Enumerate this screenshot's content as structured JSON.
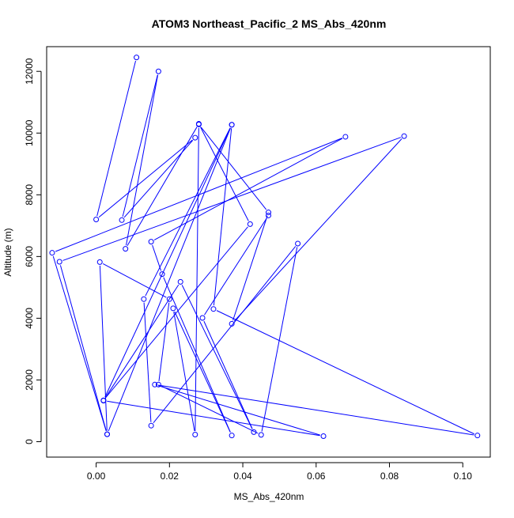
{
  "chart_data": {
    "type": "line",
    "title": "ATOM3 Northeast_Pacific_2 MS_Abs_420nm",
    "xlabel": "MS_Abs_420nm",
    "ylabel": "Altitude (m)",
    "xlim": [
      -0.0135,
      0.1075
    ],
    "ylim": [
      -500,
      12800
    ],
    "x_ticks": [
      0.0,
      0.02,
      0.04,
      0.06,
      0.08,
      0.1
    ],
    "x_tick_labels": [
      "0.00",
      "0.02",
      "0.04",
      "0.06",
      "0.08",
      "0.10"
    ],
    "y_ticks": [
      0,
      2000,
      4000,
      6000,
      8000,
      10000,
      12000
    ],
    "y_tick_labels": [
      "0",
      "2000",
      "4000",
      "6000",
      "8000",
      "10000",
      "12000"
    ],
    "grid": false,
    "series_color": "#0000ff",
    "series": [
      {
        "x": [
          0.011,
          0.0,
          0.027,
          0.007,
          0.017,
          0.008,
          0.028,
          0.042,
          0.002,
          0.037,
          0.003,
          -0.012,
          0.068,
          0.015,
          0.018,
          0.037,
          0.021,
          0.027,
          0.028,
          0.047,
          0.037,
          0.084,
          -0.01,
          0.003,
          0.001,
          0.02,
          0.017,
          0.045,
          0.055,
          0.015,
          0.013,
          0.037,
          0.032,
          0.104,
          0.016,
          0.062,
          0.002,
          0.023,
          0.043,
          0.029,
          0.047
        ],
        "y": [
          12450,
          7200,
          9850,
          7180,
          12000,
          6250,
          10300,
          7050,
          1340,
          10270,
          240,
          6120,
          9880,
          6480,
          5430,
          200,
          4320,
          230,
          10280,
          7430,
          3820,
          9900,
          5830,
          240,
          5820,
          4620,
          1850,
          220,
          6420,
          520,
          4620,
          10270,
          4300,
          200,
          1850,
          180,
          1330,
          5180,
          310,
          4010,
          7330
        ]
      }
    ]
  }
}
